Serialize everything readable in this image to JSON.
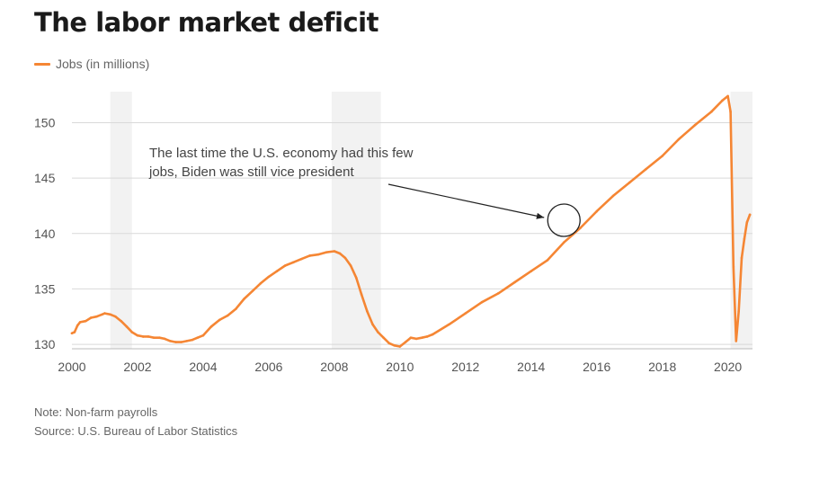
{
  "colors": {
    "line": "#f58634",
    "recession": "#f2f2f2",
    "grid": "#d9d9d9",
    "axis": "#bbbbbb",
    "annotation": "#222222"
  },
  "chart_data": {
    "type": "line",
    "title": "The labor market deficit",
    "legend": [
      "Jobs (in millions)"
    ],
    "legend_position": "top-left",
    "xlabel": "",
    "ylabel": "",
    "xlim": [
      2000,
      2020.75
    ],
    "ylim": [
      129.6,
      152.8
    ],
    "xticks": [
      2000,
      2002,
      2004,
      2006,
      2008,
      2010,
      2012,
      2014,
      2016,
      2018,
      2020
    ],
    "xtick_labels": [
      "2000",
      "2002",
      "2004",
      "2006",
      "2008",
      "2010",
      "2012",
      "2014",
      "2016",
      "2018",
      "2020"
    ],
    "yticks": [
      130,
      135,
      140,
      145,
      150
    ],
    "ytick_labels": [
      "130",
      "135",
      "140",
      "145",
      "150"
    ],
    "grid": "horizontal",
    "recessions": [
      [
        2001.17,
        2001.83
      ],
      [
        2007.92,
        2009.42
      ],
      [
        2020.08,
        2020.75
      ]
    ],
    "series": [
      {
        "name": "Jobs (in millions)",
        "x": [
          2000.0,
          2000.08,
          2000.17,
          2000.25,
          2000.42,
          2000.58,
          2000.75,
          2000.92,
          2001.0,
          2001.17,
          2001.33,
          2001.5,
          2001.67,
          2001.83,
          2002.0,
          2002.17,
          2002.33,
          2002.5,
          2002.67,
          2002.83,
          2003.0,
          2003.17,
          2003.33,
          2003.5,
          2003.67,
          2003.83,
          2004.0,
          2004.25,
          2004.5,
          2004.75,
          2005.0,
          2005.25,
          2005.5,
          2005.75,
          2006.0,
          2006.25,
          2006.5,
          2006.75,
          2007.0,
          2007.25,
          2007.5,
          2007.75,
          2008.0,
          2008.17,
          2008.33,
          2008.5,
          2008.67,
          2008.83,
          2009.0,
          2009.17,
          2009.33,
          2009.5,
          2009.67,
          2009.83,
          2010.0,
          2010.17,
          2010.33,
          2010.5,
          2010.67,
          2010.83,
          2011.0,
          2011.5,
          2012.0,
          2012.5,
          2013.0,
          2013.5,
          2014.0,
          2014.5,
          2015.0,
          2015.5,
          2016.0,
          2016.5,
          2017.0,
          2017.5,
          2018.0,
          2018.5,
          2019.0,
          2019.5,
          2019.83,
          2020.0,
          2020.08,
          2020.17,
          2020.25,
          2020.33,
          2020.42,
          2020.5,
          2020.58,
          2020.67
        ],
        "values": [
          131.0,
          131.1,
          131.7,
          132.0,
          132.1,
          132.4,
          132.5,
          132.7,
          132.8,
          132.7,
          132.5,
          132.1,
          131.6,
          131.1,
          130.8,
          130.7,
          130.7,
          130.6,
          130.6,
          130.5,
          130.3,
          130.2,
          130.2,
          130.3,
          130.4,
          130.6,
          130.8,
          131.6,
          132.2,
          132.6,
          133.2,
          134.1,
          134.8,
          135.5,
          136.1,
          136.6,
          137.1,
          137.4,
          137.7,
          138.0,
          138.1,
          138.3,
          138.4,
          138.2,
          137.8,
          137.1,
          136.0,
          134.5,
          133.0,
          131.8,
          131.1,
          130.6,
          130.1,
          129.9,
          129.8,
          130.2,
          130.6,
          130.5,
          130.6,
          130.7,
          130.9,
          131.8,
          132.8,
          133.8,
          134.6,
          135.6,
          136.6,
          137.6,
          139.2,
          140.5,
          142.0,
          143.4,
          144.6,
          145.8,
          147.0,
          148.5,
          149.8,
          151.0,
          152.0,
          152.4,
          151.0,
          137.0,
          130.3,
          133.0,
          137.8,
          139.5,
          141.0,
          141.7
        ]
      }
    ],
    "annotations": [
      {
        "lines": [
          "The last time the U.S. economy had this few",
          "jobs, Biden was still vice president"
        ],
        "target": [
          2015.0,
          141.2
        ]
      }
    ]
  },
  "notes": {
    "note": "Note: Non-farm payrolls",
    "source": "Source: U.S. Bureau of Labor Statistics"
  }
}
